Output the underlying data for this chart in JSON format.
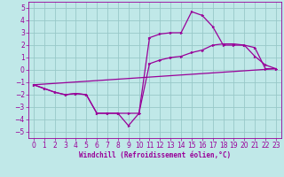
{
  "xlabel": "Windchill (Refroidissement éolien,°C)",
  "xlim": [
    -0.5,
    23.5
  ],
  "ylim": [
    -5.5,
    5.5
  ],
  "xticks": [
    0,
    1,
    2,
    3,
    4,
    5,
    6,
    7,
    8,
    9,
    10,
    11,
    12,
    13,
    14,
    15,
    16,
    17,
    18,
    19,
    20,
    21,
    22,
    23
  ],
  "yticks": [
    -5,
    -4,
    -3,
    -2,
    -1,
    0,
    1,
    2,
    3,
    4,
    5
  ],
  "background_color": "#c0e8e8",
  "grid_color": "#98c8c8",
  "line_color": "#990099",
  "line1_x": [
    0,
    1,
    2,
    3,
    4,
    5,
    6,
    7,
    8,
    9,
    10,
    11,
    12,
    13,
    14,
    15,
    16,
    17,
    18,
    19,
    20,
    21,
    22,
    23
  ],
  "line1_y": [
    -1.2,
    -1.5,
    -1.8,
    -2.0,
    -1.9,
    -2.0,
    -3.5,
    -3.5,
    -3.5,
    -4.5,
    -3.5,
    0.5,
    0.8,
    1.0,
    1.1,
    1.4,
    1.6,
    2.0,
    2.1,
    2.1,
    2.0,
    1.8,
    0.1,
    0.1
  ],
  "line2_x": [
    0,
    1,
    2,
    3,
    4,
    5,
    6,
    7,
    8,
    9,
    10,
    11,
    12,
    13,
    14,
    15,
    16,
    17,
    18,
    19,
    20,
    21,
    22,
    23
  ],
  "line2_y": [
    -1.2,
    -1.5,
    -1.8,
    -2.0,
    -1.9,
    -2.0,
    -3.5,
    -3.5,
    -3.5,
    -3.5,
    -3.5,
    2.6,
    2.9,
    3.0,
    3.0,
    4.7,
    4.4,
    3.5,
    2.0,
    2.0,
    2.0,
    1.1,
    0.4,
    0.1
  ],
  "line3_x": [
    0,
    23
  ],
  "line3_y": [
    -1.2,
    0.1
  ],
  "tick_fontsize": 5.5,
  "xlabel_fontsize": 5.5
}
